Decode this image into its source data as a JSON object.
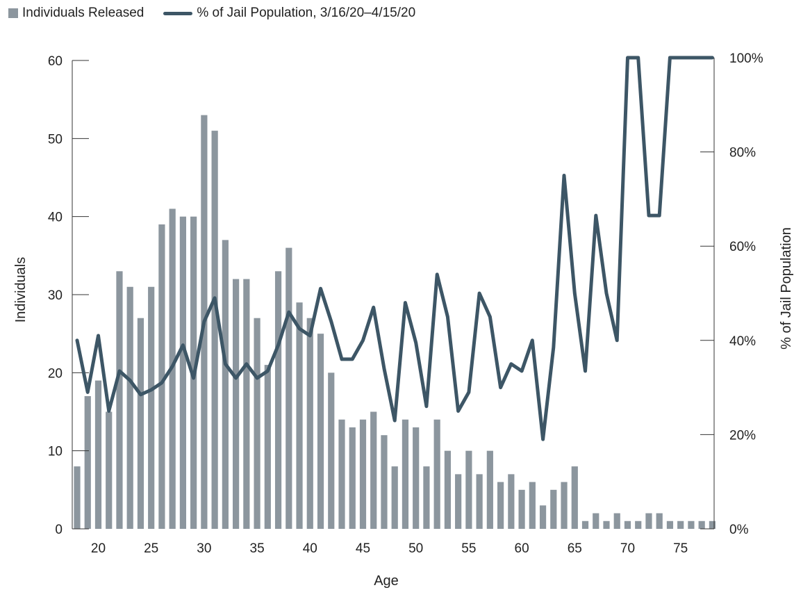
{
  "chart_data": {
    "type": "bar+line",
    "legend": {
      "position": "top-left",
      "items": [
        "Individuals Released",
        "% of Jail Population, 3/16/20–4/15/20"
      ]
    },
    "xlabel": "Age",
    "ylabel_left": "Individuals",
    "ylabel_right": "% of Jail Population",
    "x": [
      18,
      19,
      20,
      21,
      22,
      23,
      24,
      25,
      26,
      27,
      28,
      29,
      30,
      31,
      32,
      33,
      34,
      35,
      36,
      37,
      38,
      39,
      40,
      41,
      42,
      43,
      44,
      45,
      46,
      47,
      48,
      49,
      50,
      51,
      52,
      53,
      54,
      55,
      56,
      57,
      58,
      59,
      60,
      61,
      62,
      63,
      64,
      65,
      66,
      67,
      68,
      69,
      70,
      71,
      72,
      73,
      74,
      75,
      76,
      77,
      78
    ],
    "x_ticks": [
      "20",
      "25",
      "30",
      "35",
      "40",
      "45",
      "50",
      "55",
      "60",
      "65",
      "70",
      "75"
    ],
    "y_left_ticks": [
      "0",
      "10",
      "20",
      "30",
      "40",
      "50",
      "60"
    ],
    "y_right_ticks": [
      "0%",
      "20%",
      "40%",
      "60%",
      "80%",
      "100%"
    ],
    "ylim_left": [
      0,
      60
    ],
    "ylim_right": [
      0,
      100
    ],
    "grid": false,
    "series": [
      {
        "name": "Individuals Released",
        "kind": "bar",
        "axis": "left",
        "color": "#8c969e",
        "values": [
          8,
          17,
          19,
          15,
          33,
          31,
          27,
          31,
          39,
          41,
          40,
          40,
          53,
          51,
          37,
          32,
          32,
          27,
          21,
          33,
          36,
          29,
          27,
          25,
          20,
          14,
          13,
          14,
          15,
          12,
          8,
          14,
          13,
          8,
          14,
          10,
          7,
          10,
          7,
          10,
          6,
          7,
          5,
          6,
          3,
          5,
          6,
          8,
          1,
          2,
          1,
          2,
          1,
          1,
          2,
          2,
          1,
          1,
          1,
          1,
          1
        ]
      },
      {
        "name": "% of Jail Population, 3/16/20–4/15/20",
        "kind": "line",
        "axis": "right",
        "color": "#3d5666",
        "values": [
          40,
          29,
          41,
          25,
          33.5,
          31.5,
          28.5,
          29.5,
          31,
          34.5,
          39,
          32,
          44,
          49,
          35,
          32,
          35,
          32,
          33.5,
          39,
          46,
          42.5,
          41,
          51,
          44,
          36,
          36,
          40,
          47,
          34,
          23,
          48,
          39.5,
          26,
          54,
          45,
          25,
          29,
          50,
          45,
          30,
          35,
          33.5,
          40,
          19,
          38.5,
          75,
          50,
          33.5,
          66.5,
          50,
          40,
          100,
          100,
          66.5,
          66.5,
          100,
          100,
          100,
          100,
          100
        ]
      }
    ]
  }
}
